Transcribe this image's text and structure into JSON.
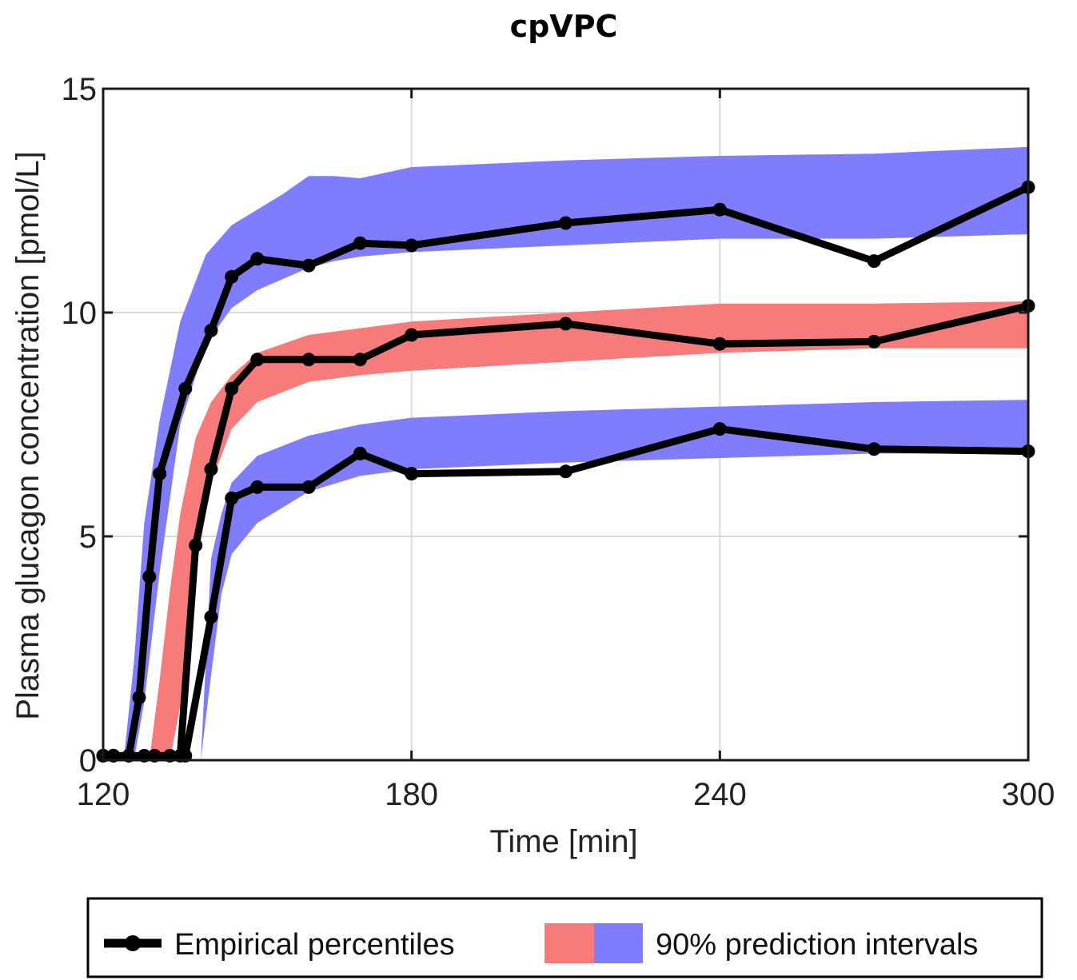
{
  "chart_data": {
    "type": "line",
    "title": "cpVPC",
    "xlabel": "Time [min]",
    "ylabel": "Plasma glucagon concentration [pmol/L]",
    "xlim": [
      120,
      300
    ],
    "ylim": [
      0,
      15
    ],
    "xticks": [
      120,
      180,
      240,
      300
    ],
    "yticks": [
      0,
      5,
      10,
      15
    ],
    "grid": true,
    "legend": {
      "placement": "bottom",
      "entries": [
        "Empirical percentiles",
        "90% prediction intervals"
      ]
    },
    "colors": {
      "line": "#000000",
      "band_median": "#f87b7b",
      "band_outer": "#7f7dfb",
      "grid": "#d9d9d9"
    },
    "series": [
      {
        "role": "upper percentile",
        "x": [
          120,
          122,
          125,
          127,
          129,
          131,
          136,
          141,
          145,
          150,
          160,
          170,
          180,
          210,
          240,
          270,
          300
        ],
        "y": [
          0.1,
          0.1,
          0.1,
          1.4,
          4.1,
          6.4,
          8.3,
          9.6,
          10.8,
          11.2,
          11.05,
          11.55,
          11.5,
          12.0,
          12.3,
          11.15,
          12.8
        ]
      },
      {
        "role": "median",
        "x": [
          120,
          122,
          125,
          128,
          130,
          133,
          135,
          138,
          141,
          145,
          150,
          160,
          170,
          180,
          210,
          240,
          270,
          300
        ],
        "y": [
          0.1,
          0.1,
          0.1,
          0.1,
          0.1,
          0.1,
          0.1,
          4.8,
          6.5,
          8.3,
          8.95,
          8.95,
          8.95,
          9.5,
          9.75,
          9.3,
          9.35,
          10.15
        ]
      },
      {
        "role": "lower percentile",
        "x": [
          136,
          141,
          145,
          150,
          160,
          170,
          180,
          210,
          240,
          270,
          300
        ],
        "y": [
          0.1,
          3.2,
          5.85,
          6.1,
          6.1,
          6.85,
          6.4,
          6.45,
          7.4,
          6.95,
          6.9
        ]
      }
    ],
    "bands": [
      {
        "role": "upper percentile 90% PI",
        "color": "#7f7dfb",
        "x": [
          124,
          126,
          128,
          131,
          135,
          140,
          145,
          150,
          155,
          160,
          165,
          170,
          180,
          210,
          240,
          270,
          300
        ],
        "lower": [
          0,
          0,
          1.3,
          4.2,
          7.5,
          9.3,
          10.1,
          10.5,
          10.75,
          11.0,
          11.15,
          11.25,
          11.35,
          11.5,
          11.65,
          11.65,
          11.75
        ],
        "upper": [
          0,
          2.2,
          5.3,
          7.6,
          9.8,
          11.3,
          11.95,
          12.3,
          12.65,
          13.05,
          13.05,
          13.0,
          13.25,
          13.4,
          13.5,
          13.55,
          13.7
        ]
      },
      {
        "role": "median 90% PI",
        "color": "#f87b7b",
        "x": [
          129,
          131,
          133,
          135,
          138,
          141,
          145,
          150,
          160,
          170,
          180,
          210,
          240,
          270,
          300
        ],
        "lower": [
          0,
          0,
          0,
          1.2,
          4.2,
          6.2,
          7.4,
          8.0,
          8.45,
          8.6,
          8.7,
          8.9,
          9.1,
          9.2,
          9.2
        ],
        "upper": [
          0,
          1.8,
          3.8,
          5.5,
          7.2,
          8.0,
          8.6,
          9.1,
          9.5,
          9.65,
          9.8,
          10.0,
          10.2,
          10.2,
          10.25
        ]
      },
      {
        "role": "lower percentile 90% PI",
        "color": "#7f7dfb",
        "x": [
          139,
          141,
          143,
          145,
          150,
          160,
          170,
          180,
          210,
          240,
          270,
          300
        ],
        "lower": [
          0,
          1.9,
          3.7,
          4.6,
          5.3,
          6.0,
          6.35,
          6.5,
          6.65,
          6.75,
          6.85,
          6.85
        ],
        "upper": [
          0,
          4.5,
          5.5,
          6.2,
          6.8,
          7.25,
          7.5,
          7.65,
          7.8,
          7.9,
          8.0,
          8.05
        ]
      }
    ]
  }
}
